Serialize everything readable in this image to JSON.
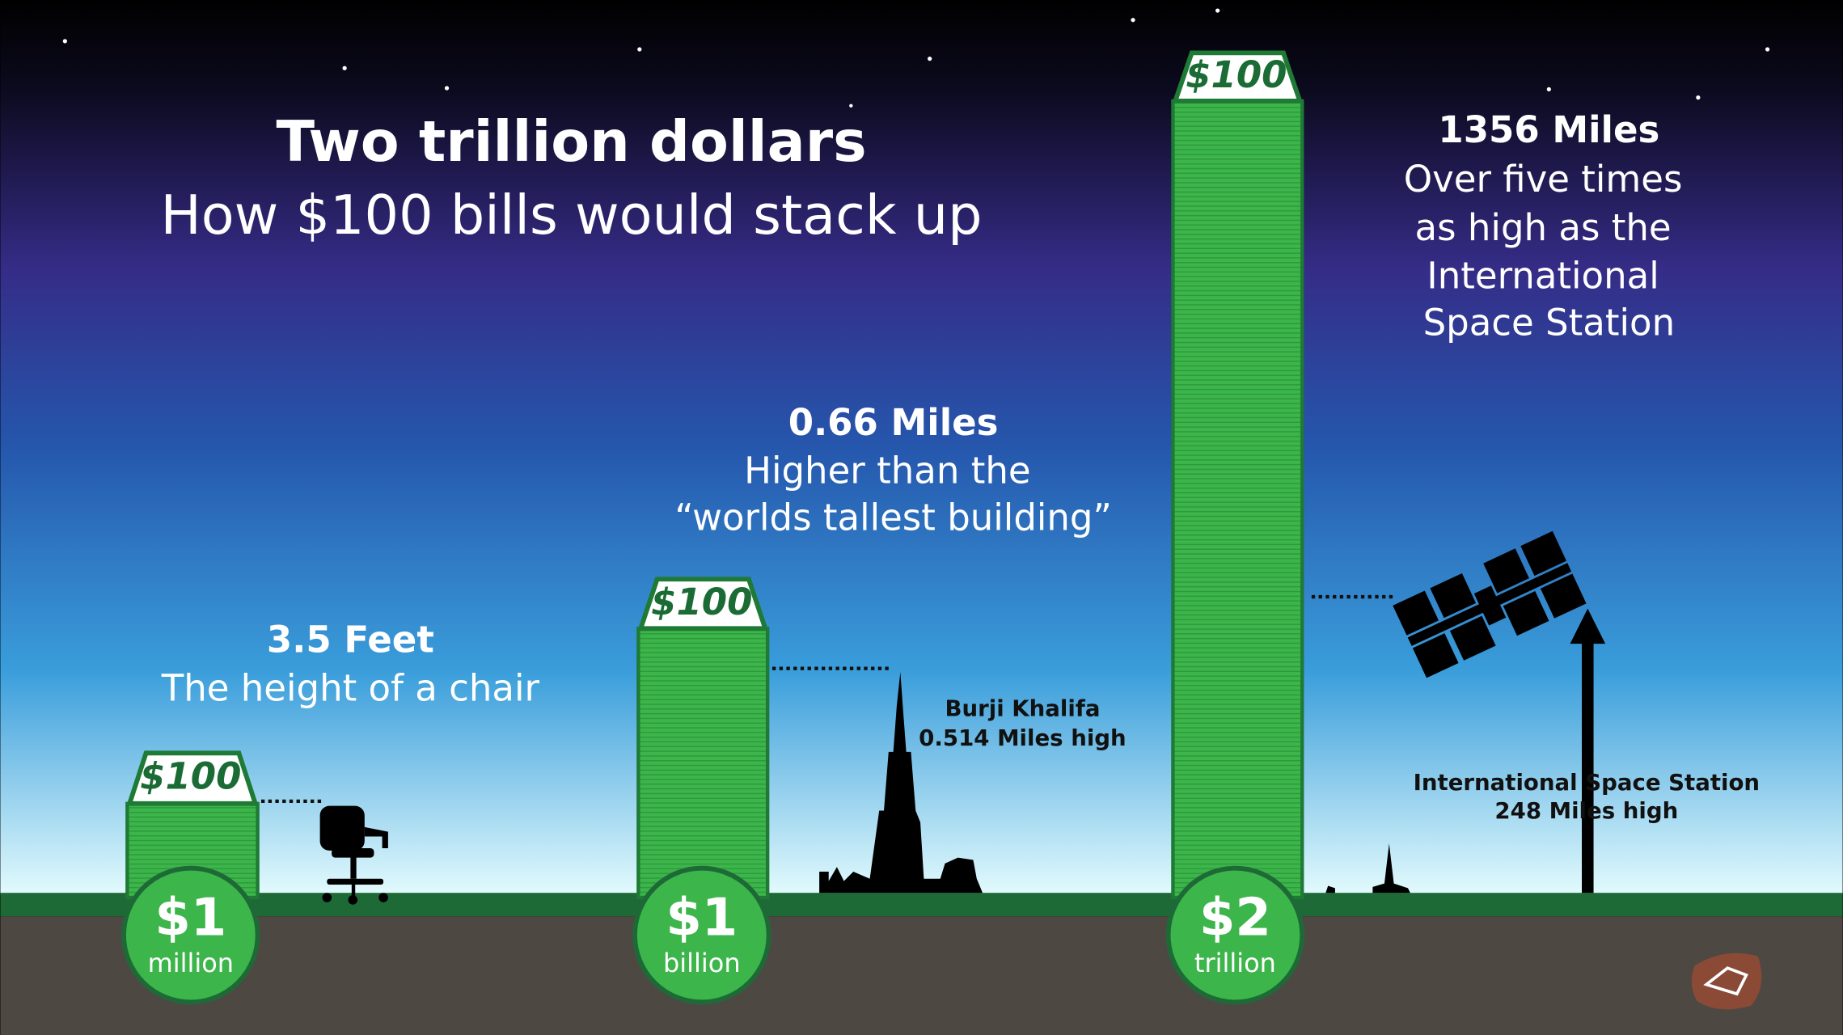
{
  "header": {
    "title": "Two trillion dollars",
    "subtitle": "How $100 bills would stack up"
  },
  "stacks": [
    {
      "bill": "$100",
      "amount": "$1",
      "unit": "million",
      "height": "3.5 Feet",
      "comparison": [
        "The height of a chair"
      ]
    },
    {
      "bill": "$100",
      "amount": "$1",
      "unit": "billion",
      "height": "0.66 Miles",
      "comparison": [
        "Higher than the",
        "“worlds tallest building”"
      ]
    },
    {
      "bill": "$100",
      "amount": "$2",
      "unit": "trillion",
      "height": "1356 Miles",
      "comparison": [
        "Over five times",
        "as high as the",
        "International",
        "Space Station"
      ]
    }
  ],
  "landmarks": [
    {
      "name": "Burji Khalifa",
      "height": "0.514 Miles high"
    },
    {
      "name": "International Space Station",
      "height": "248 Miles high"
    }
  ]
}
